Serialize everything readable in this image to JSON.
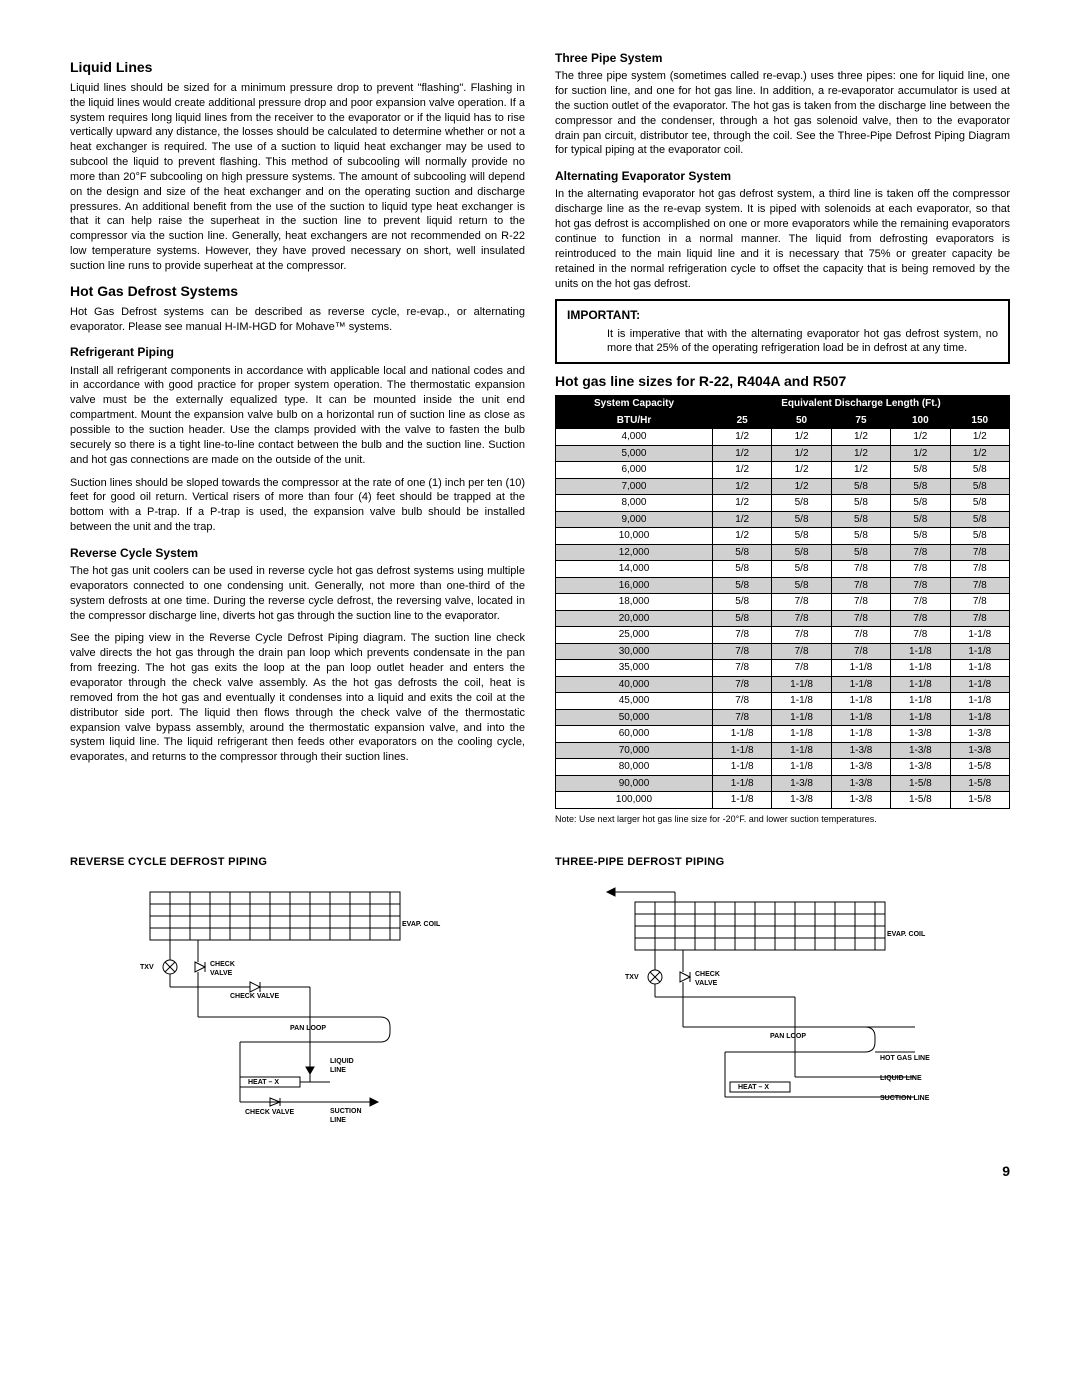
{
  "left": {
    "h1": "Liquid Lines",
    "p1": "Liquid lines should be sized for a minimum pressure drop to prevent \"flashing\". Flashing in the liquid lines would create additional pressure drop and poor expansion valve operation. If a system requires long liquid lines from the receiver to the evaporator or if the liquid has to rise vertically upward any distance, the losses should be calculated to determine whether or not a heat exchanger is required. The use of a suction to liquid heat exchanger may be used to subcool the liquid to prevent flashing. This method of subcooling will normally provide no more than 20°F subcooling on high pressure systems. The amount of subcooling will depend on the design and size of the heat exchanger and on the operating suction and discharge pressures. An additional benefit from the use of the suction to liquid type heat exchanger is that it can help raise the superheat in the suction line to prevent liquid return to the compressor via the suction line. Generally, heat exchangers are not recommended on R-22 low temperature systems. However, they have proved necessary on short, well insulated suction line runs to provide superheat at the compressor.",
    "h2": "Hot Gas Defrost Systems",
    "p2": "Hot Gas Defrost systems can be described as reverse cycle, re-evap., or alternating evaporator.  Please see manual H-IM-HGD for Mohave™ systems.",
    "h3": "Refrigerant Piping",
    "p3": "Install all refrigerant components in accordance with applicable local and national codes and in accordance with good practice for proper system operation. The thermostatic expansion valve must be the externally equalized type. It can be mounted inside the unit end compartment. Mount the expansion valve bulb on a horizontal run of suction line as close as possible to the suction header. Use the clamps provided with the valve to fasten the bulb securely so there is a tight line-to-line contact between the bulb and the suction line. Suction and hot gas connections are made on the outside of the unit.",
    "p4": "Suction lines should be sloped towards the compressor at the rate of one (1) inch per ten (10) feet for good oil return. Vertical risers of more than four (4) feet should be trapped at the bottom with a P-trap. If a P-trap is used, the expansion valve bulb should be installed between the unit and the trap.",
    "h4": "Reverse Cycle System",
    "p5": "The hot gas unit coolers can be used in reverse cycle hot gas defrost systems using multiple evaporators connected to one condensing unit. Generally, not more than one-third of the system defrosts at one time.  During the reverse cycle defrost, the reversing valve, located in the compressor discharge line, diverts hot gas through the suction line to the evaporator.",
    "p6": "See the piping view in the Reverse Cycle Defrost Piping diagram. The suction line check valve directs the hot gas through the drain pan loop which prevents condensate in the pan from freezing. The hot gas exits the loop at the pan loop outlet header and enters the evaporator through the check valve assembly. As the hot gas defrosts the coil, heat is removed from the hot gas and eventually it condenses into a liquid and exits the coil at the distributor side port. The liquid then flows through the check valve of the thermostatic expansion valve bypass assembly, around the thermostatic expansion valve, and into the system liquid line. The liquid refrigerant then feeds other evaporators on the cooling cycle, evaporates, and returns to the compressor through their suction lines."
  },
  "right": {
    "h1": "Three Pipe System",
    "p1": "The three pipe system (sometimes called re-evap.) uses three pipes: one for liquid line, one for suction line, and one for hot gas line. In addition, a re-evaporator accumulator is used at the suction outlet of the evaporator. The hot gas is taken from the discharge line between the compressor and the condenser, through a hot gas solenoid valve, then to the evaporator drain pan circuit, distributor tee, through the coil. See the Three-Pipe Defrost Piping Diagram for typical piping at the evaporator coil.",
    "h2": "Alternating Evaporator System",
    "p2": "In the alternating evaporator hot gas defrost system, a third line is taken off the compressor discharge line as the re-evap system. It is piped with solenoids at each evaporator, so that hot gas defrost is accomplished on one or more evaporators while the remaining evaporators continue to function in a normal manner. The liquid from defrosting evaporators is reintroduced to the main liquid line and it is necessary that 75% or greater capacity be retained in the normal refrigeration cycle to offset the capacity that is being removed by the units on the hot gas defrost.",
    "imp_h": "IMPORTANT:",
    "imp_p": "It is imperative that with the alternating evaporator hot gas defrost system, no more that 25% of the operating refrigeration load be in defrost at any time.",
    "tbl_h": "Hot gas line sizes for R-22, R404A and R507",
    "note": "Note:  Use next larger hot gas line size for -20°F. and lower suction temperatures."
  },
  "table": {
    "h1": "System Capacity",
    "h2": "Equivalent Discharge Length (Ft.)",
    "h3": "BTU/Hr",
    "cols": [
      "25",
      "50",
      "75",
      "100",
      "150"
    ],
    "rows": [
      [
        "4,000",
        "1/2",
        "1/2",
        "1/2",
        "1/2",
        "1/2"
      ],
      [
        "5,000",
        "1/2",
        "1/2",
        "1/2",
        "1/2",
        "1/2"
      ],
      [
        "6,000",
        "1/2",
        "1/2",
        "1/2",
        "5/8",
        "5/8"
      ],
      [
        "7,000",
        "1/2",
        "1/2",
        "5/8",
        "5/8",
        "5/8"
      ],
      [
        "8,000",
        "1/2",
        "5/8",
        "5/8",
        "5/8",
        "5/8"
      ],
      [
        "9,000",
        "1/2",
        "5/8",
        "5/8",
        "5/8",
        "5/8"
      ],
      [
        "10,000",
        "1/2",
        "5/8",
        "5/8",
        "5/8",
        "5/8"
      ],
      [
        "12,000",
        "5/8",
        "5/8",
        "5/8",
        "7/8",
        "7/8"
      ],
      [
        "14,000",
        "5/8",
        "5/8",
        "7/8",
        "7/8",
        "7/8"
      ],
      [
        "16,000",
        "5/8",
        "5/8",
        "7/8",
        "7/8",
        "7/8"
      ],
      [
        "18,000",
        "5/8",
        "7/8",
        "7/8",
        "7/8",
        "7/8"
      ],
      [
        "20,000",
        "5/8",
        "7/8",
        "7/8",
        "7/8",
        "7/8"
      ],
      [
        "25,000",
        "7/8",
        "7/8",
        "7/8",
        "7/8",
        "1-1/8"
      ],
      [
        "30,000",
        "7/8",
        "7/8",
        "7/8",
        "1-1/8",
        "1-1/8"
      ],
      [
        "35,000",
        "7/8",
        "7/8",
        "1-1/8",
        "1-1/8",
        "1-1/8"
      ],
      [
        "40,000",
        "7/8",
        "1-1/8",
        "1-1/8",
        "1-1/8",
        "1-1/8"
      ],
      [
        "45,000",
        "7/8",
        "1-1/8",
        "1-1/8",
        "1-1/8",
        "1-1/8"
      ],
      [
        "50,000",
        "7/8",
        "1-1/8",
        "1-1/8",
        "1-1/8",
        "1-1/8"
      ],
      [
        "60,000",
        "1-1/8",
        "1-1/8",
        "1-1/8",
        "1-3/8",
        "1-3/8"
      ],
      [
        "70,000",
        "1-1/8",
        "1-1/8",
        "1-3/8",
        "1-3/8",
        "1-3/8"
      ],
      [
        "80,000",
        "1-1/8",
        "1-1/8",
        "1-3/8",
        "1-3/8",
        "1-5/8"
      ],
      [
        "90,000",
        "1-1/8",
        "1-3/8",
        "1-3/8",
        "1-5/8",
        "1-5/8"
      ],
      [
        "100,000",
        "1-1/8",
        "1-3/8",
        "1-3/8",
        "1-5/8",
        "1-5/8"
      ]
    ]
  },
  "diag1": {
    "title": "REVERSE CYCLE DEFROST PIPING",
    "evap": "EVAP. COIL",
    "txv": "TXV",
    "cv": "CHECK\nVALVE",
    "cv2": "CHECK VALVE",
    "cv3": "CHECK VALVE",
    "pan": "PAN LOOP",
    "liq": "LIQUID\nLINE",
    "heat": "HEAT – X",
    "suc": "SUCTION\nLINE"
  },
  "diag2": {
    "title": "THREE-PIPE DEFROST PIPING",
    "evap": "EVAP. COIL",
    "txv": "TXV",
    "cv": "CHECK\nVALVE",
    "pan": "PAN LOOP",
    "hot": "HOT GAS LINE",
    "liq": "LIQUID LINE",
    "heat": "HEAT – X",
    "suc": "SUCTION LINE"
  },
  "pagenum": "9"
}
